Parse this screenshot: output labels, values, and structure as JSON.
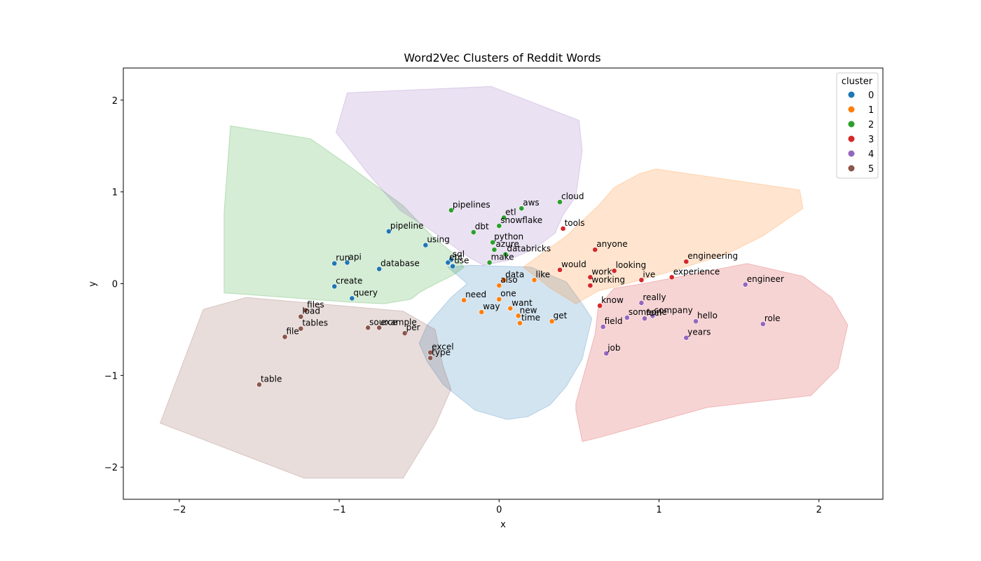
{
  "chart_data": {
    "type": "scatter",
    "title": "Word2Vec Clusters of Reddit Words",
    "xlabel": "x",
    "ylabel": "y",
    "xlim": [
      -2.35,
      2.4
    ],
    "ylim": [
      -2.35,
      2.35
    ],
    "xticks": [
      -2,
      -1,
      0,
      1,
      2
    ],
    "yticks": [
      -2,
      -1,
      0,
      1,
      2
    ],
    "grid": false,
    "legend": {
      "title": "cluster",
      "position": "top-right"
    },
    "clusters": [
      {
        "name": "0",
        "color": "#1f77b4",
        "hull": [
          [
            -0.32,
            0.18
          ],
          [
            -0.18,
            0.2
          ],
          [
            0.2,
            0.18
          ],
          [
            0.42,
            0.02
          ],
          [
            0.52,
            -0.22
          ],
          [
            0.58,
            -0.38
          ],
          [
            0.52,
            -0.82
          ],
          [
            0.42,
            -1.12
          ],
          [
            0.32,
            -1.32
          ],
          [
            0.18,
            -1.45
          ],
          [
            0.05,
            -1.48
          ],
          [
            -0.15,
            -1.38
          ],
          [
            -0.35,
            -1.1
          ],
          [
            -0.45,
            -0.85
          ],
          [
            -0.5,
            -0.65
          ],
          [
            -0.45,
            -0.45
          ],
          [
            -0.4,
            -0.35
          ],
          [
            -0.3,
            -0.15
          ],
          [
            -0.2,
            0.0
          ]
        ]
      },
      {
        "name": "1",
        "color": "#ff7f0e",
        "hull": [
          [
            0.15,
            0.18
          ],
          [
            0.42,
            0.52
          ],
          [
            0.62,
            0.85
          ],
          [
            0.72,
            1.05
          ],
          [
            0.88,
            1.2
          ],
          [
            0.98,
            1.25
          ],
          [
            1.1,
            1.22
          ],
          [
            1.88,
            1.02
          ],
          [
            1.9,
            0.82
          ],
          [
            1.65,
            0.52
          ],
          [
            1.42,
            0.32
          ],
          [
            1.2,
            0.2
          ],
          [
            1.05,
            0.12
          ],
          [
            0.8,
            0.0
          ],
          [
            0.62,
            -0.08
          ],
          [
            0.48,
            -0.22
          ],
          [
            0.32,
            -0.05
          ],
          [
            0.25,
            0.05
          ]
        ]
      },
      {
        "name": "2",
        "color": "#2ca02c",
        "hull": [
          [
            -1.68,
            1.72
          ],
          [
            -1.18,
            1.58
          ],
          [
            -0.95,
            1.3
          ],
          [
            -0.6,
            0.85
          ],
          [
            -0.42,
            0.52
          ],
          [
            -0.28,
            0.32
          ],
          [
            -0.22,
            0.18
          ],
          [
            -0.28,
            0.1
          ],
          [
            -0.45,
            -0.05
          ],
          [
            -0.5,
            -0.1
          ],
          [
            -0.55,
            -0.17
          ],
          [
            -0.72,
            -0.22
          ],
          [
            -0.95,
            -0.2
          ],
          [
            -1.72,
            -0.1
          ],
          [
            -1.72,
            0.78
          ]
        ]
      },
      {
        "name": "3",
        "color": "#d62728",
        "hull": [
          [
            1.55,
            0.22
          ],
          [
            1.9,
            0.08
          ],
          [
            2.08,
            -0.15
          ],
          [
            2.18,
            -0.45
          ],
          [
            2.12,
            -0.92
          ],
          [
            1.95,
            -1.22
          ],
          [
            1.3,
            -1.35
          ],
          [
            0.62,
            -1.68
          ],
          [
            0.52,
            -1.72
          ],
          [
            0.48,
            -1.38
          ],
          [
            0.48,
            -1.3
          ],
          [
            0.52,
            -1.05
          ],
          [
            0.6,
            -0.55
          ],
          [
            0.62,
            -0.25
          ],
          [
            0.72,
            -0.05
          ],
          [
            0.9,
            0.0
          ],
          [
            1.2,
            0.1
          ]
        ]
      },
      {
        "name": "4",
        "color": "#9467bd",
        "hull": [
          [
            -1.02,
            1.65
          ],
          [
            -0.95,
            2.08
          ],
          [
            -0.05,
            2.15
          ],
          [
            0.5,
            1.78
          ],
          [
            0.52,
            1.45
          ],
          [
            0.48,
            0.95
          ],
          [
            0.4,
            0.75
          ],
          [
            0.35,
            0.55
          ],
          [
            0.22,
            0.38
          ],
          [
            0.05,
            0.25
          ],
          [
            -0.1,
            0.2
          ],
          [
            -0.2,
            0.3
          ],
          [
            -0.4,
            0.55
          ],
          [
            -0.62,
            0.8
          ],
          [
            -0.82,
            1.2
          ]
        ]
      },
      {
        "name": "5",
        "color": "#8c564b",
        "hull": [
          [
            -1.85,
            -0.28
          ],
          [
            -1.58,
            -0.15
          ],
          [
            -1.25,
            -0.2
          ],
          [
            -0.6,
            -0.3
          ],
          [
            -0.4,
            -0.5
          ],
          [
            -0.35,
            -0.9
          ],
          [
            -0.3,
            -1.15
          ],
          [
            -0.4,
            -1.55
          ],
          [
            -0.6,
            -2.12
          ],
          [
            -1.22,
            -2.12
          ],
          [
            -2.12,
            -1.52
          ]
        ]
      }
    ],
    "points": [
      {
        "label": "pipeline",
        "x": -0.69,
        "y": 0.57,
        "cluster": "0"
      },
      {
        "label": "using",
        "x": -0.46,
        "y": 0.42,
        "cluster": "0"
      },
      {
        "label": "run",
        "x": -1.03,
        "y": 0.22,
        "cluster": "0"
      },
      {
        "label": "api",
        "x": -0.95,
        "y": 0.23,
        "cluster": "0"
      },
      {
        "label": "database",
        "x": -0.75,
        "y": 0.16,
        "cluster": "0"
      },
      {
        "label": "create",
        "x": -1.03,
        "y": -0.03,
        "cluster": "0"
      },
      {
        "label": "query",
        "x": -0.92,
        "y": -0.16,
        "cluster": "0"
      },
      {
        "label": "sql",
        "x": -0.3,
        "y": 0.26,
        "cluster": "0"
      },
      {
        "label": "etc",
        "x": -0.32,
        "y": 0.23,
        "cluster": "0"
      },
      {
        "label": "use",
        "x": -0.29,
        "y": 0.19,
        "cluster": "0"
      },
      {
        "label": "data",
        "x": 0.03,
        "y": 0.04,
        "cluster": "1"
      },
      {
        "label": "also",
        "x": 0.0,
        "y": -0.02,
        "cluster": "1"
      },
      {
        "label": "one",
        "x": 0.0,
        "y": -0.17,
        "cluster": "1"
      },
      {
        "label": "like",
        "x": 0.22,
        "y": 0.04,
        "cluster": "1"
      },
      {
        "label": "need",
        "x": -0.22,
        "y": -0.18,
        "cluster": "1"
      },
      {
        "label": "way",
        "x": -0.11,
        "y": -0.31,
        "cluster": "1"
      },
      {
        "label": "want",
        "x": 0.07,
        "y": -0.27,
        "cluster": "1"
      },
      {
        "label": "new",
        "x": 0.12,
        "y": -0.35,
        "cluster": "1"
      },
      {
        "label": "time",
        "x": 0.13,
        "y": -0.43,
        "cluster": "1"
      },
      {
        "label": "get",
        "x": 0.33,
        "y": -0.41,
        "cluster": "1"
      },
      {
        "label": "pipelines",
        "x": -0.3,
        "y": 0.8,
        "cluster": "2"
      },
      {
        "label": "aws",
        "x": 0.14,
        "y": 0.82,
        "cluster": "2"
      },
      {
        "label": "cloud",
        "x": 0.38,
        "y": 0.89,
        "cluster": "2"
      },
      {
        "label": "etl",
        "x": 0.03,
        "y": 0.72,
        "cluster": "2"
      },
      {
        "label": "snowflake",
        "x": 0.0,
        "y": 0.63,
        "cluster": "2"
      },
      {
        "label": "dbt",
        "x": -0.16,
        "y": 0.56,
        "cluster": "2"
      },
      {
        "label": "python",
        "x": -0.04,
        "y": 0.45,
        "cluster": "2"
      },
      {
        "label": "azure",
        "x": -0.03,
        "y": 0.37,
        "cluster": "2"
      },
      {
        "label": "databricks",
        "x": 0.04,
        "y": 0.32,
        "cluster": "2"
      },
      {
        "label": "make",
        "x": -0.06,
        "y": 0.23,
        "cluster": "2"
      },
      {
        "label": "tools",
        "x": 0.4,
        "y": 0.6,
        "cluster": "3"
      },
      {
        "label": "anyone",
        "x": 0.6,
        "y": 0.37,
        "cluster": "3"
      },
      {
        "label": "engineering",
        "x": 1.17,
        "y": 0.24,
        "cluster": "3"
      },
      {
        "label": "would",
        "x": 0.38,
        "y": 0.15,
        "cluster": "3"
      },
      {
        "label": "looking",
        "x": 0.72,
        "y": 0.14,
        "cluster": "3"
      },
      {
        "label": "work",
        "x": 0.57,
        "y": 0.07,
        "cluster": "3"
      },
      {
        "label": "ive",
        "x": 0.89,
        "y": 0.04,
        "cluster": "3"
      },
      {
        "label": "experience",
        "x": 1.08,
        "y": 0.07,
        "cluster": "3"
      },
      {
        "label": "working",
        "x": 0.57,
        "y": -0.02,
        "cluster": "3"
      },
      {
        "label": "know",
        "x": 0.63,
        "y": -0.24,
        "cluster": "3"
      },
      {
        "label": "engineer",
        "x": 1.54,
        "y": -0.01,
        "cluster": "4"
      },
      {
        "label": "really",
        "x": 0.89,
        "y": -0.21,
        "cluster": "4"
      },
      {
        "label": "company",
        "x": 0.96,
        "y": -0.35,
        "cluster": "4"
      },
      {
        "label": "someone",
        "x": 0.8,
        "y": -0.37,
        "cluster": "4"
      },
      {
        "label": "feel",
        "x": 0.91,
        "y": -0.38,
        "cluster": "4"
      },
      {
        "label": "field",
        "x": 0.65,
        "y": -0.47,
        "cluster": "4"
      },
      {
        "label": "hello",
        "x": 1.23,
        "y": -0.41,
        "cluster": "4"
      },
      {
        "label": "role",
        "x": 1.65,
        "y": -0.44,
        "cluster": "4"
      },
      {
        "label": "years",
        "x": 1.17,
        "y": -0.59,
        "cluster": "4"
      },
      {
        "label": "job",
        "x": 0.67,
        "y": -0.76,
        "cluster": "4"
      },
      {
        "label": "files",
        "x": -1.21,
        "y": -0.29,
        "cluster": "5"
      },
      {
        "label": "load",
        "x": -1.24,
        "y": -0.36,
        "cluster": "5"
      },
      {
        "label": "tables",
        "x": -1.24,
        "y": -0.49,
        "cluster": "5"
      },
      {
        "label": "file",
        "x": -1.34,
        "y": -0.58,
        "cluster": "5"
      },
      {
        "label": "source",
        "x": -0.82,
        "y": -0.48,
        "cluster": "5"
      },
      {
        "label": "example",
        "x": -0.75,
        "y": -0.48,
        "cluster": "5"
      },
      {
        "label": "per",
        "x": -0.59,
        "y": -0.54,
        "cluster": "5"
      },
      {
        "label": "excel",
        "x": -0.43,
        "y": -0.75,
        "cluster": "5"
      },
      {
        "label": "type",
        "x": -0.43,
        "y": -0.81,
        "cluster": "5"
      },
      {
        "label": "table",
        "x": -1.5,
        "y": -1.1,
        "cluster": "5"
      }
    ]
  }
}
